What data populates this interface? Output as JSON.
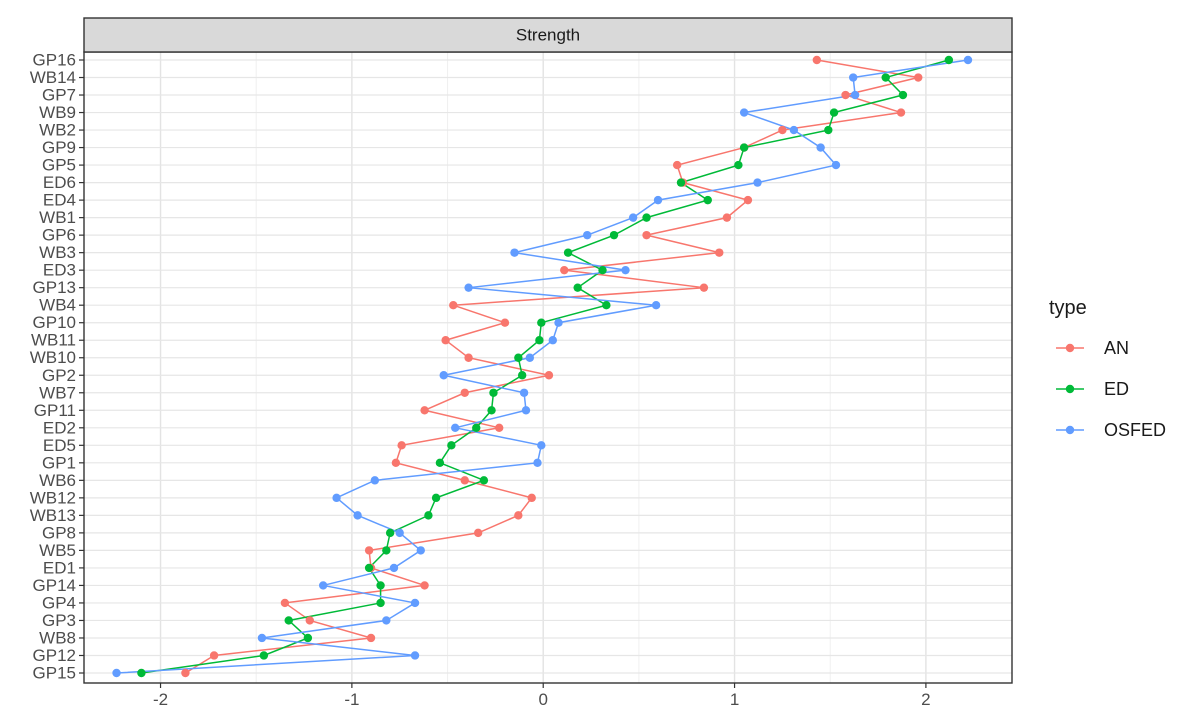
{
  "chart_data": {
    "type": "line",
    "facet_title": "Strength",
    "categories": [
      "GP16",
      "WB14",
      "GP7",
      "WB9",
      "WB2",
      "GP9",
      "GP5",
      "ED6",
      "ED4",
      "WB1",
      "GP6",
      "WB3",
      "ED3",
      "GP13",
      "WB4",
      "GP10",
      "WB11",
      "WB10",
      "GP2",
      "WB7",
      "GP11",
      "ED2",
      "ED5",
      "GP1",
      "WB6",
      "WB12",
      "WB13",
      "GP8",
      "WB5",
      "ED1",
      "GP14",
      "GP4",
      "GP3",
      "WB8",
      "GP12",
      "GP15"
    ],
    "xlim": [
      -2.4,
      2.45
    ],
    "xticks": [
      -2,
      -1,
      0,
      1,
      2
    ],
    "xtick_labels": [
      "-2",
      "-1",
      "0",
      "1",
      "2"
    ],
    "grid": true,
    "legend": {
      "title": "type",
      "position": "right"
    },
    "series": [
      {
        "name": "AN",
        "color": "#F8766D",
        "values": [
          1.43,
          1.96,
          1.58,
          1.87,
          1.25,
          1.05,
          0.7,
          0.73,
          1.07,
          0.96,
          0.54,
          0.92,
          0.11,
          0.84,
          -0.47,
          -0.2,
          -0.51,
          -0.39,
          0.03,
          -0.41,
          -0.62,
          -0.23,
          -0.74,
          -0.77,
          -0.41,
          -0.06,
          -0.13,
          -0.34,
          -0.91,
          -0.9,
          -0.62,
          -1.35,
          -1.22,
          -0.9,
          -1.72,
          -1.87
        ]
      },
      {
        "name": "ED",
        "color": "#00BA38",
        "values": [
          2.12,
          1.79,
          1.88,
          1.52,
          1.49,
          1.05,
          1.02,
          0.72,
          0.86,
          0.54,
          0.37,
          0.13,
          0.31,
          0.18,
          0.33,
          -0.01,
          -0.02,
          -0.13,
          -0.11,
          -0.26,
          -0.27,
          -0.35,
          -0.48,
          -0.54,
          -0.31,
          -0.56,
          -0.6,
          -0.8,
          -0.82,
          -0.91,
          -0.85,
          -0.85,
          -1.33,
          -1.23,
          -1.46,
          -2.1
        ]
      },
      {
        "name": "OSFED",
        "color": "#619CFF",
        "values": [
          2.22,
          1.62,
          1.63,
          1.05,
          1.31,
          1.45,
          1.53,
          1.12,
          0.6,
          0.47,
          0.23,
          -0.15,
          0.43,
          -0.39,
          0.59,
          0.08,
          0.05,
          -0.07,
          -0.52,
          -0.1,
          -0.09,
          -0.46,
          -0.01,
          -0.03,
          -0.88,
          -1.08,
          -0.97,
          -0.75,
          -0.64,
          -0.78,
          -1.15,
          -0.67,
          -0.82,
          -1.47,
          -0.67,
          -2.23
        ]
      }
    ]
  }
}
